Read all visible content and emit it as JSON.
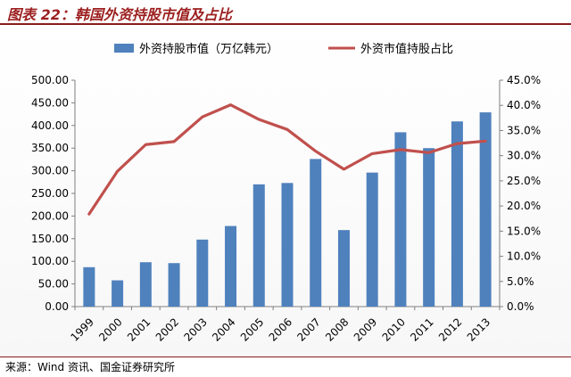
{
  "header": {
    "title": "图表 22：韩国外资持股市值及占比"
  },
  "footer": {
    "source": "来源：Wind 资讯、国金证券研究所"
  },
  "chart_data": {
    "type": "bar+line",
    "title": "图表 22：韩国外资持股市值及占比",
    "categories": [
      "1999",
      "2000",
      "2001",
      "2002",
      "2003",
      "2004",
      "2005",
      "2006",
      "2007",
      "2008",
      "2009",
      "2010",
      "2011",
      "2012",
      "2013"
    ],
    "series": [
      {
        "name": "外资持股市值（万亿韩元）",
        "type": "bar",
        "axis": "left",
        "color": "#4f81bd",
        "values": [
          87,
          58,
          98,
          96,
          148,
          178,
          270,
          273,
          326,
          169,
          296,
          385,
          350,
          409,
          429
        ]
      },
      {
        "name": "外资市值持股占比",
        "type": "line",
        "axis": "right",
        "color": "#c0504d",
        "values": [
          18.4,
          26.9,
          32.2,
          32.8,
          37.7,
          40.1,
          37.2,
          35.2,
          30.9,
          27.3,
          30.4,
          31.2,
          30.6,
          32.4,
          32.9
        ]
      }
    ],
    "y_left": {
      "min": 0,
      "max": 500,
      "step": 50,
      "ticks": [
        "0.00",
        "50.00",
        "100.00",
        "150.00",
        "200.00",
        "250.00",
        "300.00",
        "350.00",
        "400.00",
        "450.00",
        "500.00"
      ]
    },
    "y_right": {
      "min": 0,
      "max": 45,
      "step": 5,
      "ticks": [
        "0.0%",
        "5.0%",
        "10.0%",
        "15.0%",
        "20.0%",
        "25.0%",
        "30.0%",
        "35.0%",
        "40.0%",
        "45.0%"
      ]
    },
    "legend": {
      "placement": "top",
      "entries": [
        "外资持股市值（万亿韩元）",
        "外资市值持股占比"
      ]
    },
    "grid": false
  }
}
